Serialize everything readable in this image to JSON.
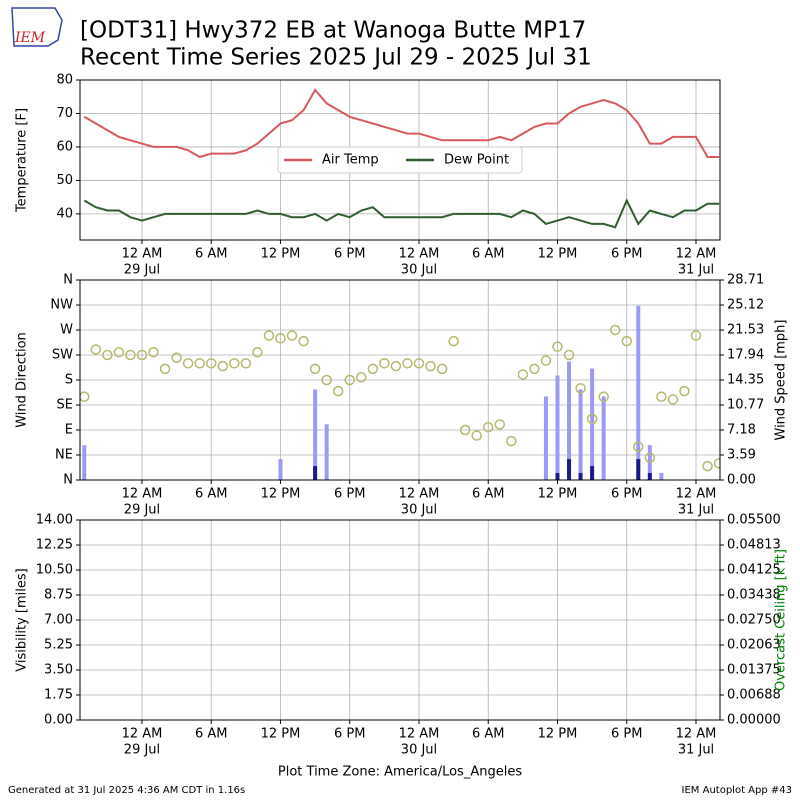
{
  "logo": "IEM",
  "title": "[ODT31] Hwy372 EB at Wanoga Butte MP17",
  "subtitle": "Recent Time Series 2025 Jul 29 - 2025 Jul 31",
  "footer_left": "Generated at 31 Jul 2025 4:36 AM CDT in 1.16s",
  "footer_right": "IEM Autoplot App #43",
  "chart_data": [
    {
      "type": "line",
      "ylabel": "Temperature [F]",
      "x": [
        -5,
        -4,
        -3,
        -2,
        -1,
        0,
        1,
        2,
        3,
        4,
        5,
        6,
        7,
        8,
        9,
        10,
        11,
        12,
        13,
        14,
        15,
        16,
        17,
        18,
        19,
        20,
        21,
        22,
        23,
        24,
        25,
        26,
        27,
        28,
        29,
        30,
        31,
        32,
        33,
        34,
        35,
        36,
        37,
        38,
        39,
        40,
        41,
        42,
        43,
        44,
        45,
        46,
        47,
        48,
        49,
        50
      ],
      "xlim": [
        -5.37,
        50.08
      ],
      "xticks": [
        {
          "value": 0,
          "label": "12 AM",
          "date": "29 Jul"
        },
        {
          "value": 6,
          "label": "6 AM"
        },
        {
          "value": 12,
          "label": "12 PM"
        },
        {
          "value": 18,
          "label": "6 PM"
        },
        {
          "value": 24,
          "label": "12 AM",
          "date": "30 Jul"
        },
        {
          "value": 30,
          "label": "6 AM"
        },
        {
          "value": 36,
          "label": "12 PM"
        },
        {
          "value": 42,
          "label": "6 PM"
        },
        {
          "value": 48,
          "label": "12 AM",
          "date": "31 Jul"
        }
      ],
      "ylim": [
        32.2,
        80
      ],
      "yticks": [
        40,
        50,
        60,
        70,
        80
      ],
      "grid": true,
      "legend": "center",
      "series": [
        {
          "name": "Air Temp",
          "color": "#d9585c",
          "values": [
            69,
            67,
            65,
            63,
            62,
            61,
            60,
            60,
            60,
            59,
            57,
            58,
            58,
            58,
            59,
            61,
            64,
            67,
            68,
            71,
            77,
            73,
            71,
            69,
            68,
            67,
            66,
            65,
            64,
            64,
            63,
            62,
            62,
            62,
            62,
            62,
            63,
            62,
            64,
            66,
            67,
            67,
            70,
            72,
            73,
            74,
            73,
            71,
            67,
            61,
            61,
            63,
            63,
            63,
            57,
            57
          ]
        },
        {
          "name": "Dew Point",
          "color": "#2e5e2e",
          "values": [
            44,
            42,
            41,
            41,
            39,
            38,
            39,
            40,
            40,
            40,
            40,
            40,
            40,
            40,
            40,
            41,
            40,
            40,
            39,
            39,
            40,
            38,
            40,
            39,
            41,
            42,
            39,
            39,
            39,
            39,
            39,
            39,
            40,
            40,
            40,
            40,
            40,
            39,
            41,
            40,
            37,
            38,
            39,
            38,
            37,
            37,
            36,
            44,
            37,
            41,
            40,
            39,
            41,
            41,
            43,
            43
          ]
        }
      ]
    },
    {
      "type": "scatter",
      "ylabel": "Wind Direction",
      "y2label": "Wind Speed [mph]",
      "x": [
        -5,
        -4,
        -3,
        -2,
        -1,
        0,
        1,
        2,
        3,
        4,
        5,
        6,
        7,
        8,
        9,
        10,
        11,
        12,
        13,
        14,
        15,
        16,
        17,
        18,
        19,
        20,
        21,
        22,
        23,
        24,
        25,
        26,
        27,
        28,
        29,
        30,
        31,
        32,
        33,
        34,
        35,
        36,
        37,
        38,
        39,
        40,
        41,
        42,
        43,
        44,
        45,
        46,
        47,
        48,
        49,
        50
      ],
      "xlim": [
        -5.37,
        50.08
      ],
      "xticks": [
        {
          "value": 0,
          "label": "12 AM",
          "date": "29 Jul"
        },
        {
          "value": 6,
          "label": "6 AM"
        },
        {
          "value": 12,
          "label": "12 PM"
        },
        {
          "value": 18,
          "label": "6 PM"
        },
        {
          "value": 24,
          "label": "12 AM",
          "date": "30 Jul"
        },
        {
          "value": 30,
          "label": "6 AM"
        },
        {
          "value": 36,
          "label": "12 PM"
        },
        {
          "value": 42,
          "label": "6 PM"
        },
        {
          "value": 48,
          "label": "12 AM",
          "date": "31 Jul"
        }
      ],
      "ylim": [
        0,
        360
      ],
      "yticks": [
        {
          "value": 0,
          "label": "N"
        },
        {
          "value": 45,
          "label": "NE"
        },
        {
          "value": 90,
          "label": "E"
        },
        {
          "value": 135,
          "label": "SE"
        },
        {
          "value": 180,
          "label": "S"
        },
        {
          "value": 225,
          "label": "SW"
        },
        {
          "value": 270,
          "label": "W"
        },
        {
          "value": 315,
          "label": "NW"
        },
        {
          "value": 360,
          "label": "N"
        }
      ],
      "y2lim": [
        0,
        28.71
      ],
      "y2ticks": [
        {
          "value": 0,
          "label": "0.00"
        },
        3.59,
        7.18,
        10.77,
        14.35,
        17.94,
        21.53,
        25.12,
        28.71
      ],
      "grid": true,
      "series": [
        {
          "type": "bar",
          "axis": "y2",
          "color": "#9a9af5",
          "values": [
            5,
            0,
            0,
            0,
            0,
            0,
            0,
            0,
            0,
            0,
            0,
            0,
            0,
            0,
            0,
            0,
            0,
            3,
            0,
            0,
            13,
            8,
            0,
            0,
            0,
            0,
            0,
            0,
            0,
            0,
            0,
            0,
            0,
            0,
            0,
            0,
            0,
            0,
            0,
            0,
            12,
            15,
            17,
            13,
            16,
            12,
            0,
            0,
            25,
            5,
            1,
            0,
            0,
            0,
            0,
            0
          ]
        },
        {
          "type": "bar",
          "axis": "y2",
          "color": "#1a1a8c",
          "values": [
            0,
            0,
            0,
            0,
            0,
            0,
            0,
            0,
            0,
            0,
            0,
            0,
            0,
            0,
            0,
            0,
            0,
            0,
            0,
            0,
            2,
            0,
            0,
            0,
            0,
            0,
            0,
            0,
            0,
            0,
            0,
            0,
            0,
            0,
            0,
            0,
            0,
            0,
            0,
            0,
            0,
            1,
            3,
            1,
            2,
            0,
            0,
            0,
            3,
            1,
            0,
            0,
            0,
            0,
            0,
            0
          ]
        },
        {
          "type": "scatter",
          "color": "#b5b86a",
          "values": [
            150,
            235,
            225,
            230,
            225,
            225,
            230,
            200,
            220,
            210,
            210,
            210,
            205,
            210,
            210,
            230,
            260,
            255,
            260,
            250,
            200,
            180,
            160,
            180,
            185,
            200,
            210,
            205,
            210,
            210,
            205,
            200,
            250,
            90,
            80,
            95,
            100,
            70,
            190,
            200,
            215,
            240,
            225,
            165,
            110,
            150,
            270,
            250,
            60,
            40,
            150,
            145,
            160,
            260,
            25,
            30
          ]
        }
      ]
    },
    {
      "type": "line",
      "xlabel": "Plot Time Zone: America/Los_Angeles",
      "ylabel": "Visibility [miles]",
      "y2label": "Overcast Ceiling [k ft]",
      "y2label_color": "#008000",
      "x": [],
      "xlim": [
        -5.37,
        50.08
      ],
      "xticks": [
        {
          "value": 0,
          "label": "12 AM",
          "date": "29 Jul"
        },
        {
          "value": 6,
          "label": "6 AM"
        },
        {
          "value": 12,
          "label": "12 PM"
        },
        {
          "value": 18,
          "label": "6 PM"
        },
        {
          "value": 24,
          "label": "12 AM",
          "date": "30 Jul"
        },
        {
          "value": 30,
          "label": "6 AM"
        },
        {
          "value": 36,
          "label": "12 PM"
        },
        {
          "value": 42,
          "label": "6 PM"
        },
        {
          "value": 48,
          "label": "12 AM",
          "date": "31 Jul"
        }
      ],
      "ylim": [
        0,
        14
      ],
      "yticks": [
        {
          "value": 0,
          "label": "0.00"
        },
        1.75,
        {
          "value": 3.5,
          "label": "3.50"
        },
        5.25,
        {
          "value": 7,
          "label": "7.00"
        },
        8.75,
        {
          "value": 10.5,
          "label": "10.50"
        },
        12.25,
        {
          "value": 14,
          "label": "14.00"
        }
      ],
      "y2lim": [
        0,
        0.055
      ],
      "y2ticks": [
        {
          "value": 0,
          "label": "0.00000"
        },
        0.00688,
        0.01375,
        0.02063,
        {
          "value": 0.0275,
          "label": "0.02750"
        },
        0.03438,
        0.04125,
        0.04813,
        {
          "value": 0.055,
          "label": "0.05500"
        }
      ],
      "grid": true,
      "series": []
    }
  ]
}
